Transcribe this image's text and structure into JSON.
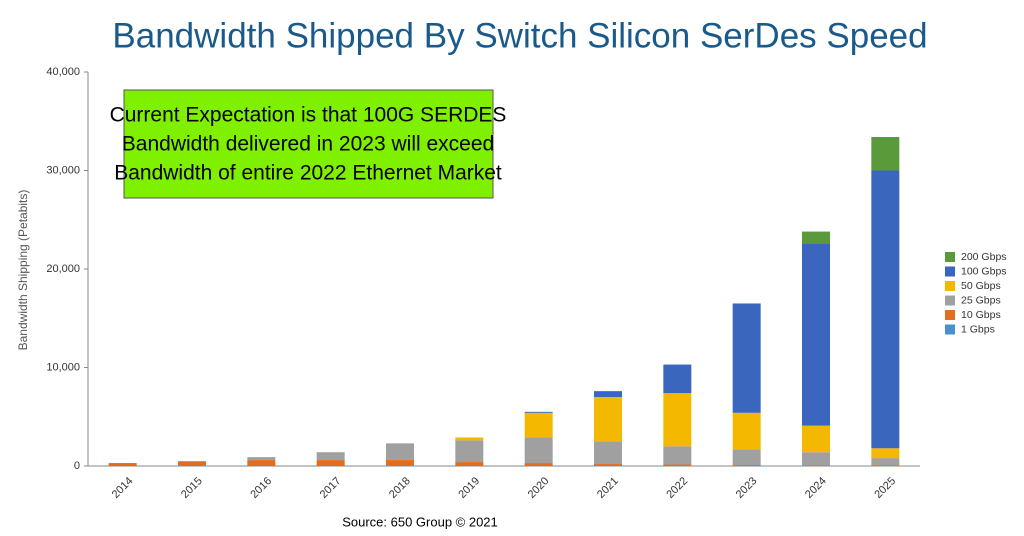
{
  "chart_data": {
    "type": "stacked_bar",
    "title": "Bandwidth Shipped By Switch Silicon SerDes Speed",
    "annotation": [
      "Current Expectation is that 100G SERDES",
      "Bandwidth delivered in 2023 will exceed",
      "Bandwidth of entire 2022 Ethernet Market"
    ],
    "source": "Source: 650 Group © 2021",
    "y_label": "Bandwidth Shipping (Petabits)",
    "categories": [
      "2014",
      "2015",
      "2016",
      "2017",
      "2018",
      "2019",
      "2020",
      "2021",
      "2022",
      "2023",
      "2024",
      "2025"
    ],
    "series": [
      {
        "name": "1 Gbps",
        "color": "#4a8fd0",
        "values": [
          20,
          0,
          0,
          0,
          0,
          0,
          0,
          0,
          0,
          0,
          0,
          0
        ]
      },
      {
        "name": "10 Gbps",
        "color": "#e36c1e",
        "values": [
          280,
          450,
          600,
          600,
          600,
          400,
          300,
          200,
          150,
          100,
          50,
          50
        ]
      },
      {
        "name": "25 Gbps",
        "color": "#a0a0a0",
        "values": [
          0,
          50,
          300,
          800,
          1700,
          2200,
          2600,
          2300,
          1850,
          1600,
          1350,
          750
        ]
      },
      {
        "name": "50 Gbps",
        "color": "#f5b800",
        "values": [
          0,
          0,
          0,
          0,
          0,
          300,
          2500,
          4500,
          5400,
          3700,
          2700,
          1000
        ]
      },
      {
        "name": "100 Gbps",
        "color": "#3a66be",
        "values": [
          0,
          0,
          0,
          0,
          0,
          0,
          100,
          600,
          2900,
          11100,
          18500,
          28200
        ]
      },
      {
        "name": "200 Gbps",
        "color": "#5a9a3a",
        "values": [
          0,
          0,
          0,
          0,
          0,
          0,
          0,
          0,
          0,
          0,
          1200,
          3400
        ]
      }
    ],
    "ylim": [
      0,
      40000
    ],
    "yticks": [
      0,
      {
        "value": 10000,
        "label": "10,000"
      },
      {
        "value": 20000,
        "label": "20,000"
      },
      {
        "value": 30000,
        "label": "30,000"
      },
      {
        "value": 40000,
        "label": "40,000"
      }
    ],
    "legend": "right"
  }
}
